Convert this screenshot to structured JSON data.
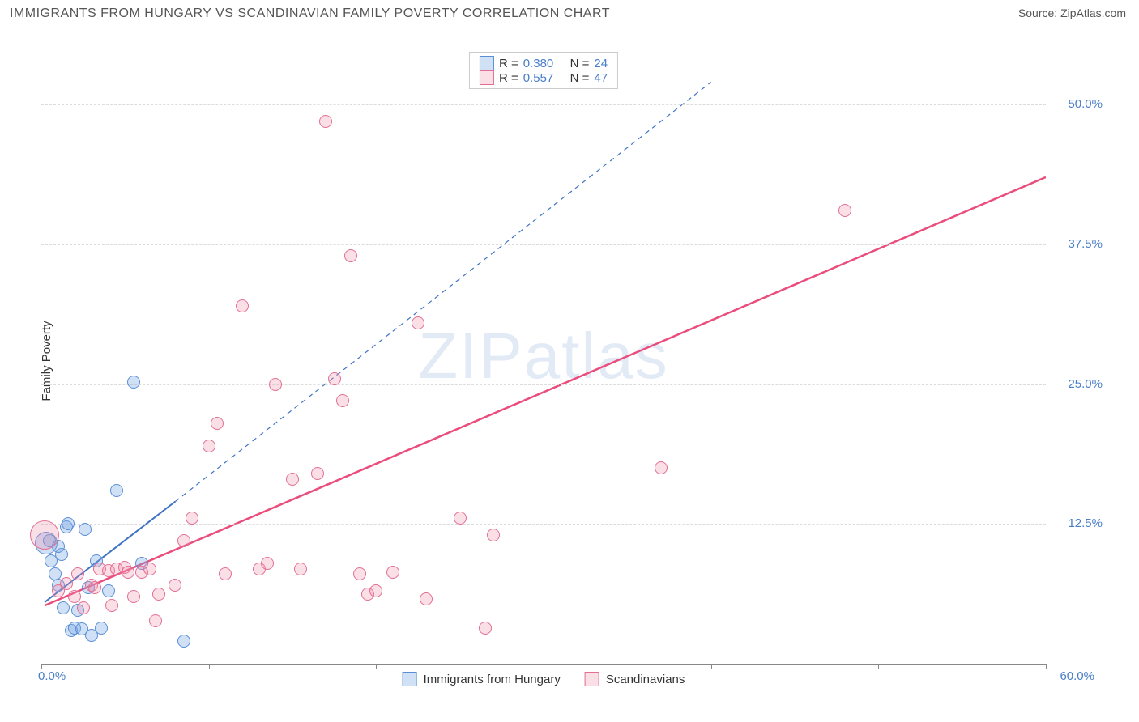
{
  "title": "IMMIGRANTS FROM HUNGARY VS SCANDINAVIAN FAMILY POVERTY CORRELATION CHART",
  "source_label": "Source:",
  "source_name": "ZipAtlas.com",
  "ylabel": "Family Poverty",
  "watermark": {
    "part1": "ZIP",
    "part2": "atlas"
  },
  "chart": {
    "type": "scatter-correlation",
    "xlim": [
      0,
      60
    ],
    "ylim": [
      0,
      55
    ],
    "x_origin_label": "0.0%",
    "x_end_label": "60.0%",
    "xtick_positions": [
      0,
      10,
      20,
      30,
      40,
      50,
      60
    ],
    "yticks": [
      {
        "v": 12.5,
        "label": "12.5%"
      },
      {
        "v": 25,
        "label": "25.0%"
      },
      {
        "v": 37.5,
        "label": "37.5%"
      },
      {
        "v": 50,
        "label": "50.0%"
      }
    ],
    "grid_color": "#dcdcdc",
    "axis_color": "#888888",
    "background_color": "#ffffff",
    "ytick_font_color": "#4a7ec9",
    "point_radius_default": 8,
    "series": [
      {
        "id": "hungary",
        "label": "Immigrants from Hungary",
        "fill": "rgba(120,165,225,0.35)",
        "stroke": "#5a8fd6",
        "R": "0.380",
        "N": "24",
        "trend": {
          "x1": 0.2,
          "y1": 5.5,
          "x2": 8.0,
          "y2": 14.5,
          "dash_x2": 40,
          "dash_y2": 52,
          "color": "#3f74c4",
          "width": 2
        },
        "points": [
          {
            "x": 0.3,
            "y": 10.8,
            "r": 14
          },
          {
            "x": 0.5,
            "y": 11.0
          },
          {
            "x": 0.6,
            "y": 9.2
          },
          {
            "x": 0.8,
            "y": 8.0
          },
          {
            "x": 1.0,
            "y": 7.0
          },
          {
            "x": 1.2,
            "y": 9.8
          },
          {
            "x": 1.3,
            "y": 5.0
          },
          {
            "x": 1.5,
            "y": 12.2
          },
          {
            "x": 1.6,
            "y": 12.5
          },
          {
            "x": 1.8,
            "y": 3.0
          },
          {
            "x": 2.0,
            "y": 3.2
          },
          {
            "x": 2.2,
            "y": 4.8
          },
          {
            "x": 2.4,
            "y": 3.1
          },
          {
            "x": 2.6,
            "y": 12.0
          },
          {
            "x": 2.8,
            "y": 6.8
          },
          {
            "x": 3.0,
            "y": 2.5
          },
          {
            "x": 3.3,
            "y": 9.2
          },
          {
            "x": 3.6,
            "y": 3.2
          },
          {
            "x": 4.0,
            "y": 6.5
          },
          {
            "x": 4.5,
            "y": 15.5
          },
          {
            "x": 5.5,
            "y": 25.2
          },
          {
            "x": 6.0,
            "y": 9.0
          },
          {
            "x": 8.5,
            "y": 2.0
          },
          {
            "x": 1.0,
            "y": 10.5
          }
        ]
      },
      {
        "id": "scandinavians",
        "label": "Scandinavians",
        "fill": "rgba(240,140,170,0.28)",
        "stroke": "#e36f94",
        "R": "0.557",
        "N": "47",
        "trend": {
          "x1": 0.2,
          "y1": 5.2,
          "x2": 60,
          "y2": 43.5,
          "color": "#ea4d7b",
          "width": 2.5
        },
        "points": [
          {
            "x": 0.2,
            "y": 11.5,
            "r": 18
          },
          {
            "x": 1.0,
            "y": 6.5
          },
          {
            "x": 1.5,
            "y": 7.2
          },
          {
            "x": 2.0,
            "y": 6.0
          },
          {
            "x": 2.2,
            "y": 8.0
          },
          {
            "x": 2.5,
            "y": 5.0
          },
          {
            "x": 3.0,
            "y": 7.0
          },
          {
            "x": 3.2,
            "y": 6.8
          },
          {
            "x": 3.5,
            "y": 8.5
          },
          {
            "x": 4.0,
            "y": 8.3
          },
          {
            "x": 4.2,
            "y": 5.2
          },
          {
            "x": 4.5,
            "y": 8.5
          },
          {
            "x": 5.0,
            "y": 8.6
          },
          {
            "x": 5.2,
            "y": 8.2
          },
          {
            "x": 5.5,
            "y": 6.0
          },
          {
            "x": 6.0,
            "y": 8.2
          },
          {
            "x": 6.5,
            "y": 8.5
          },
          {
            "x": 7.0,
            "y": 6.2
          },
          {
            "x": 8.0,
            "y": 7.0
          },
          {
            "x": 8.5,
            "y": 11.0
          },
          {
            "x": 9.0,
            "y": 13.0
          },
          {
            "x": 10.0,
            "y": 19.5
          },
          {
            "x": 10.5,
            "y": 21.5
          },
          {
            "x": 11.0,
            "y": 8.0
          },
          {
            "x": 12.0,
            "y": 32.0
          },
          {
            "x": 13.0,
            "y": 8.5
          },
          {
            "x": 13.5,
            "y": 9.0
          },
          {
            "x": 14.0,
            "y": 25.0
          },
          {
            "x": 15.0,
            "y": 16.5
          },
          {
            "x": 15.5,
            "y": 8.5
          },
          {
            "x": 16.5,
            "y": 17.0
          },
          {
            "x": 17.0,
            "y": 48.5
          },
          {
            "x": 17.5,
            "y": 25.5
          },
          {
            "x": 18.0,
            "y": 23.5
          },
          {
            "x": 18.5,
            "y": 36.5
          },
          {
            "x": 19.0,
            "y": 8.0
          },
          {
            "x": 19.5,
            "y": 6.2
          },
          {
            "x": 20.0,
            "y": 6.5
          },
          {
            "x": 21.0,
            "y": 8.2
          },
          {
            "x": 22.5,
            "y": 30.5
          },
          {
            "x": 23.0,
            "y": 5.8
          },
          {
            "x": 25.0,
            "y": 13.0
          },
          {
            "x": 26.5,
            "y": 3.2
          },
          {
            "x": 27.0,
            "y": 11.5
          },
          {
            "x": 37.0,
            "y": 17.5
          },
          {
            "x": 48.0,
            "y": 40.5
          },
          {
            "x": 6.8,
            "y": 3.8
          }
        ]
      }
    ]
  },
  "legend_top": {
    "r_label": "R =",
    "n_label": "N ="
  },
  "legend_bottom_labels": [
    "Immigrants from Hungary",
    "Scandinavians"
  ]
}
